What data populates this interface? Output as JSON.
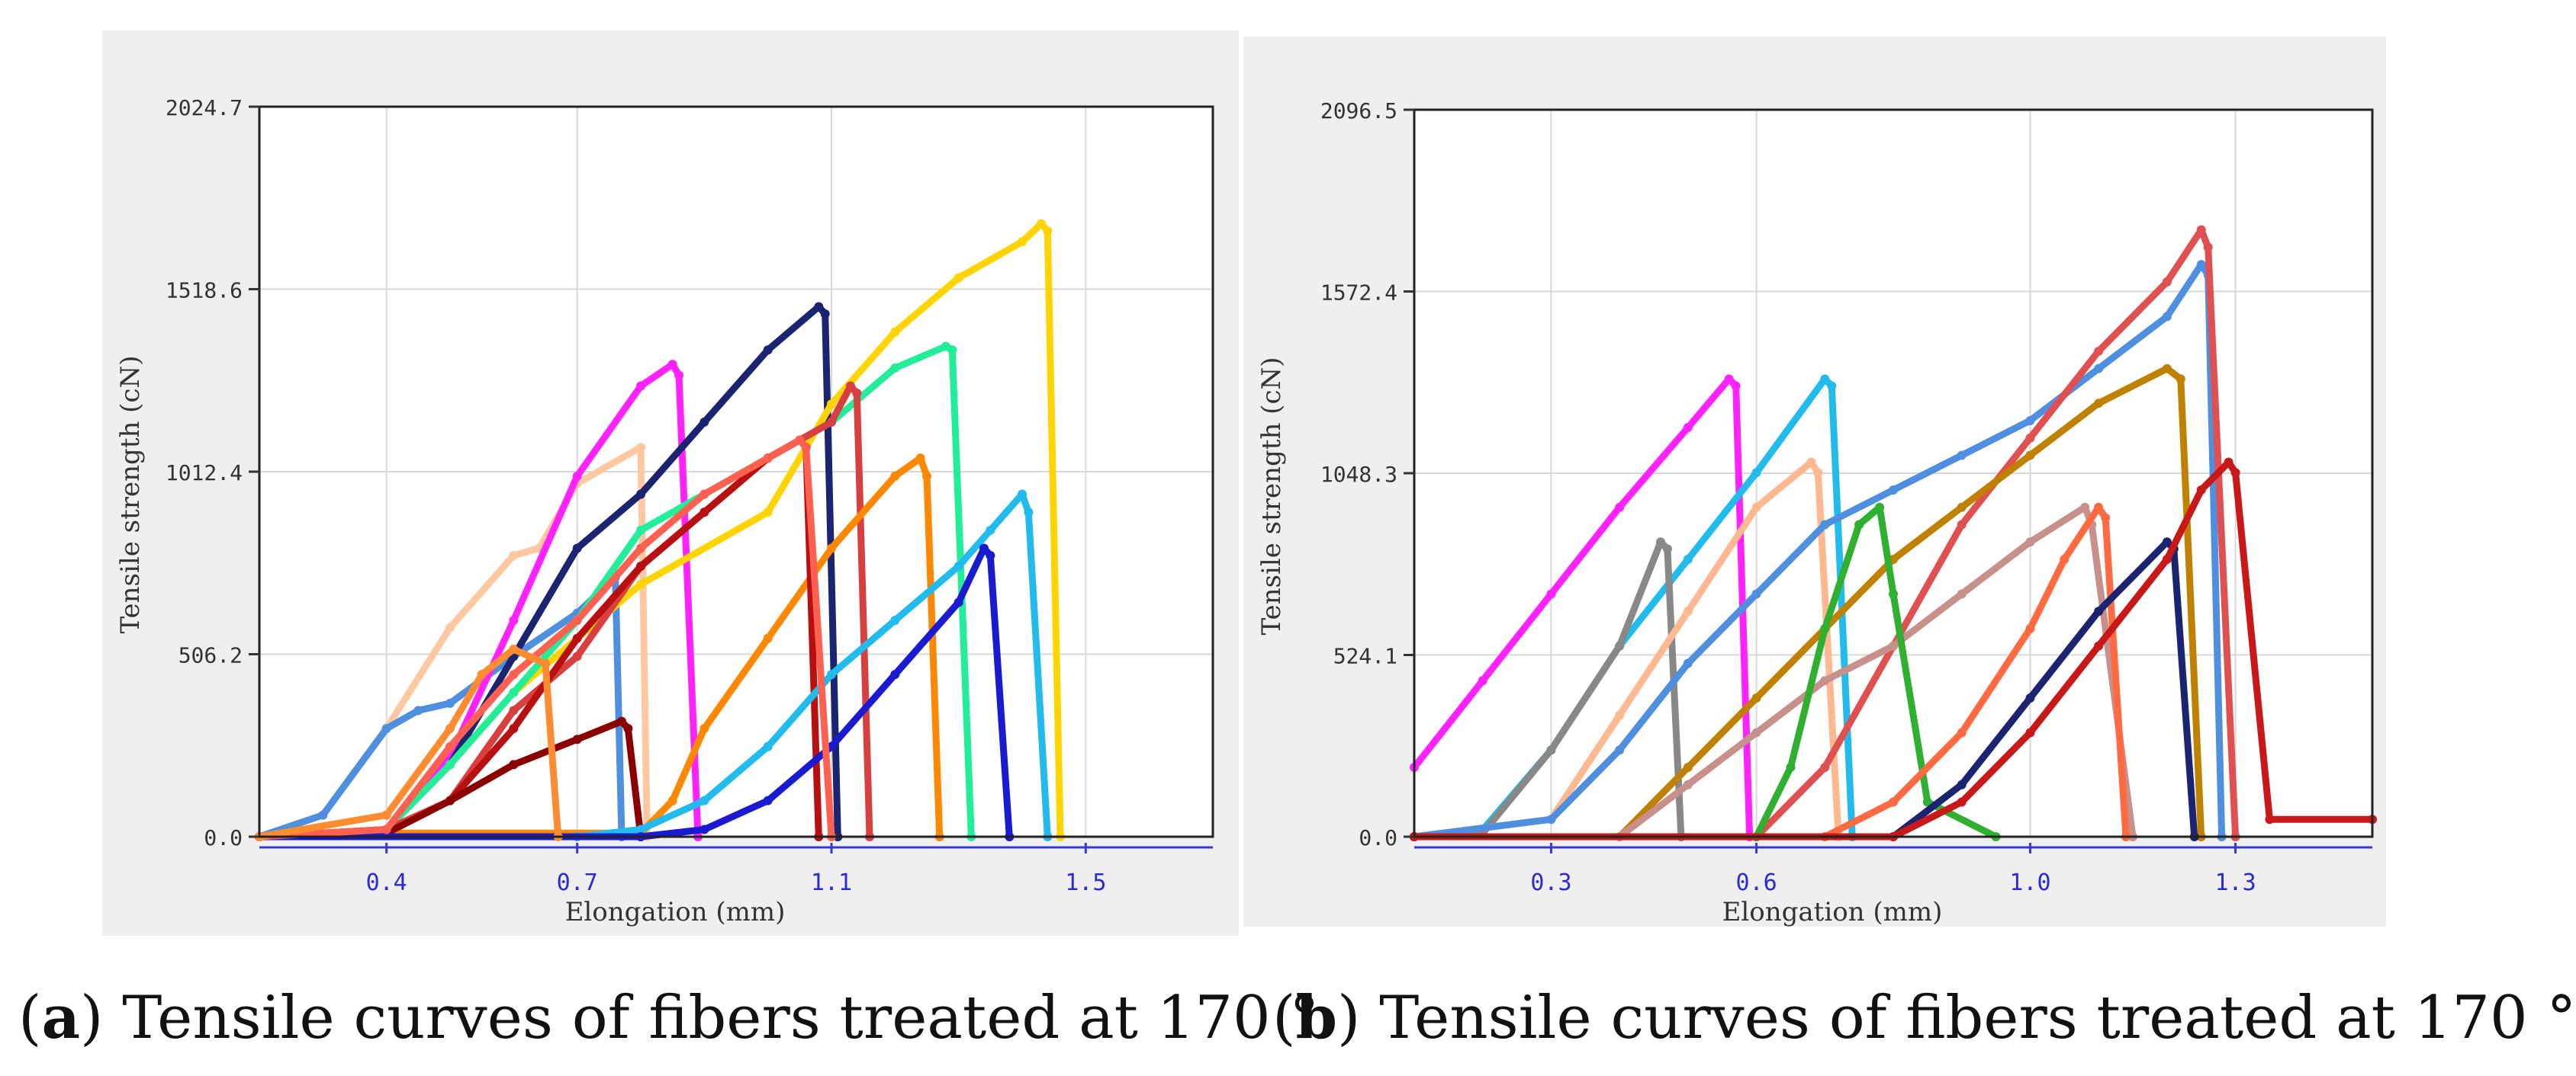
{
  "chart_data": [
    {
      "type": "line",
      "panel": "a",
      "xlabel": "Elongation (mm)",
      "ylabel": "Tensile strength (cN)",
      "xlim": [
        0.2,
        1.7
      ],
      "ylim": [
        0.0,
        2024.7
      ],
      "xticks": [
        0.4,
        0.7,
        1.1,
        1.5
      ],
      "xtick_labels": [
        "0.4",
        "0.7",
        "1.1",
        "1.5"
      ],
      "yticks": [
        0.0,
        506.2,
        1012.4,
        1518.6,
        2024.7
      ],
      "ytick_labels": [
        "0.0",
        "506.2",
        "1012.4",
        "1518.6",
        "2024.7"
      ],
      "grid": true,
      "series": [
        {
          "color": "#ffc8a0",
          "x": [
            0.2,
            0.3,
            0.4,
            0.5,
            0.6,
            0.64,
            0.7,
            0.8,
            0.81
          ],
          "y": [
            0,
            60,
            300,
            580,
            780,
            800,
            980,
            1080,
            0
          ]
        },
        {
          "color": "#4f8fe0",
          "x": [
            0.2,
            0.3,
            0.4,
            0.45,
            0.5,
            0.6,
            0.7,
            0.76,
            0.77
          ],
          "y": [
            0,
            60,
            300,
            350,
            370,
            500,
            620,
            720,
            0
          ]
        },
        {
          "color": "#ff22ff",
          "x": [
            0.2,
            0.4,
            0.5,
            0.6,
            0.7,
            0.8,
            0.85,
            0.86,
            0.89
          ],
          "y": [
            0,
            20,
            220,
            600,
            1000,
            1250,
            1310,
            1280,
            0
          ]
        },
        {
          "color": "#1a2470",
          "x": [
            0.2,
            0.4,
            0.5,
            0.6,
            0.7,
            0.8,
            0.9,
            1.0,
            1.08,
            1.09,
            1.11
          ],
          "y": [
            0,
            20,
            200,
            500,
            800,
            950,
            1150,
            1350,
            1470,
            1450,
            0
          ]
        },
        {
          "color": "#ffd400",
          "x": [
            0.2,
            0.4,
            0.5,
            0.6,
            0.8,
            1.0,
            1.1,
            1.2,
            1.3,
            1.4,
            1.43,
            1.44,
            1.46
          ],
          "y": [
            0,
            20,
            200,
            400,
            700,
            900,
            1200,
            1400,
            1550,
            1650,
            1700,
            1680,
            0
          ]
        },
        {
          "color": "#22ee99",
          "x": [
            0.2,
            0.4,
            0.5,
            0.6,
            0.7,
            0.8,
            0.9,
            1.0,
            1.1,
            1.2,
            1.28,
            1.29,
            1.32
          ],
          "y": [
            0,
            20,
            200,
            400,
            600,
            850,
            950,
            1050,
            1150,
            1300,
            1360,
            1350,
            0
          ]
        },
        {
          "color": "#d84040",
          "x": [
            0.2,
            0.4,
            0.5,
            0.6,
            0.7,
            0.8,
            0.9,
            1.0,
            1.1,
            1.13,
            1.14,
            1.16
          ],
          "y": [
            0,
            20,
            100,
            350,
            500,
            750,
            900,
            1050,
            1150,
            1250,
            1230,
            0
          ]
        },
        {
          "color": "#ff8800",
          "x": [
            0.2,
            0.4,
            0.8,
            0.85,
            0.9,
            1.0,
            1.1,
            1.2,
            1.24,
            1.25,
            1.27
          ],
          "y": [
            0,
            10,
            10,
            100,
            300,
            550,
            800,
            1000,
            1050,
            1000,
            0
          ]
        },
        {
          "color": "#b81010",
          "x": [
            0.2,
            0.4,
            0.5,
            0.6,
            0.7,
            0.8,
            0.9,
            1.0,
            1.05,
            1.06,
            1.08
          ],
          "y": [
            0,
            10,
            100,
            300,
            550,
            750,
            900,
            1050,
            1100,
            1080,
            0
          ]
        },
        {
          "color": "#8a0000",
          "x": [
            0.2,
            0.4,
            0.5,
            0.6,
            0.7,
            0.77,
            0.78,
            0.8
          ],
          "y": [
            0,
            10,
            100,
            200,
            270,
            320,
            300,
            0
          ]
        },
        {
          "color": "#22bbee",
          "x": [
            0.2,
            0.7,
            0.8,
            0.9,
            1.0,
            1.1,
            1.2,
            1.3,
            1.35,
            1.4,
            1.41,
            1.44
          ],
          "y": [
            0,
            0,
            20,
            100,
            250,
            450,
            600,
            750,
            850,
            950,
            900,
            0
          ]
        },
        {
          "color": "#1a1ad0",
          "x": [
            0.2,
            0.8,
            0.9,
            1.0,
            1.1,
            1.2,
            1.3,
            1.34,
            1.35,
            1.38
          ],
          "y": [
            0,
            0,
            20,
            100,
            250,
            450,
            650,
            800,
            780,
            0
          ]
        },
        {
          "color": "#ff6050",
          "x": [
            0.2,
            0.4,
            0.5,
            0.6,
            0.7,
            0.8,
            0.9,
            1.0,
            1.05,
            1.06,
            1.1
          ],
          "y": [
            0,
            20,
            250,
            450,
            600,
            800,
            950,
            1050,
            1100,
            1080,
            0
          ]
        },
        {
          "color": "#ff8c30",
          "x": [
            0.2,
            0.4,
            0.5,
            0.55,
            0.6,
            0.65,
            0.67
          ],
          "y": [
            0,
            60,
            300,
            450,
            520,
            480,
            0
          ]
        }
      ]
    },
    {
      "type": "line",
      "panel": "b",
      "xlabel": "Elongation (mm)",
      "ylabel": "Tensile strength (cN)",
      "xlim": [
        0.1,
        1.5
      ],
      "ylim": [
        0.0,
        2096.5
      ],
      "xticks": [
        0.3,
        0.6,
        1.0,
        1.3
      ],
      "xtick_labels": [
        "0.3",
        "0.6",
        "1.0",
        "1.3"
      ],
      "yticks": [
        0.0,
        524.1,
        1048.3,
        1572.4,
        2096.5
      ],
      "ytick_labels": [
        "0.0",
        "524.1",
        "1048.3",
        "1572.4",
        "2096.5"
      ],
      "grid": true,
      "series": [
        {
          "color": "#ff22ff",
          "x": [
            0.1,
            0.2,
            0.3,
            0.4,
            0.5,
            0.56,
            0.57,
            0.59
          ],
          "y": [
            200,
            450,
            700,
            950,
            1180,
            1320,
            1300,
            0
          ]
        },
        {
          "color": "#22bbee",
          "x": [
            0.1,
            0.2,
            0.3,
            0.4,
            0.5,
            0.6,
            0.7,
            0.71,
            0.74
          ],
          "y": [
            0,
            20,
            250,
            550,
            800,
            1050,
            1320,
            1300,
            0
          ]
        },
        {
          "color": "#888888",
          "x": [
            0.1,
            0.2,
            0.3,
            0.4,
            0.46,
            0.47,
            0.49
          ],
          "y": [
            0,
            10,
            250,
            550,
            850,
            830,
            0
          ]
        },
        {
          "color": "#ffb890",
          "x": [
            0.1,
            0.3,
            0.4,
            0.5,
            0.6,
            0.68,
            0.69,
            0.72
          ],
          "y": [
            0,
            50,
            350,
            650,
            950,
            1080,
            1050,
            0
          ]
        },
        {
          "color": "#4f8fe0",
          "x": [
            0.1,
            0.3,
            0.4,
            0.5,
            0.6,
            0.7,
            0.8,
            0.9,
            1.0,
            1.1,
            1.2,
            1.25,
            1.26,
            1.28
          ],
          "y": [
            0,
            50,
            250,
            500,
            700,
            900,
            1000,
            1100,
            1200,
            1350,
            1500,
            1650,
            1620,
            0
          ]
        },
        {
          "color": "#e05050",
          "x": [
            0.1,
            0.6,
            0.7,
            0.8,
            0.9,
            1.0,
            1.1,
            1.2,
            1.25,
            1.26,
            1.3
          ],
          "y": [
            0,
            0,
            200,
            550,
            900,
            1150,
            1400,
            1600,
            1750,
            1700,
            0
          ]
        },
        {
          "color": "#c08000",
          "x": [
            0.1,
            0.4,
            0.5,
            0.6,
            0.7,
            0.8,
            0.9,
            1.0,
            1.1,
            1.2,
            1.22,
            1.25
          ],
          "y": [
            0,
            0,
            200,
            400,
            600,
            800,
            950,
            1100,
            1250,
            1350,
            1320,
            0
          ]
        },
        {
          "color": "#c8908a",
          "x": [
            0.1,
            0.4,
            0.5,
            0.6,
            0.7,
            0.8,
            0.9,
            1.0,
            1.08,
            1.09,
            1.15
          ],
          "y": [
            0,
            0,
            150,
            300,
            450,
            550,
            700,
            850,
            950,
            900,
            0
          ]
        },
        {
          "color": "#30b030",
          "x": [
            0.1,
            0.6,
            0.65,
            0.7,
            0.75,
            0.78,
            0.8,
            0.85,
            0.95
          ],
          "y": [
            0,
            0,
            200,
            600,
            900,
            950,
            700,
            100,
            0
          ]
        },
        {
          "color": "#ff6a40",
          "x": [
            0.1,
            0.7,
            0.8,
            0.9,
            1.0,
            1.05,
            1.1,
            1.11,
            1.14
          ],
          "y": [
            0,
            0,
            100,
            300,
            600,
            800,
            950,
            920,
            0
          ]
        },
        {
          "color": "#1a2470",
          "x": [
            0.1,
            0.8,
            0.9,
            1.0,
            1.1,
            1.2,
            1.21,
            1.24
          ],
          "y": [
            0,
            0,
            150,
            400,
            650,
            850,
            830,
            0
          ]
        },
        {
          "color": "#c81818",
          "x": [
            0.1,
            0.8,
            0.9,
            1.0,
            1.1,
            1.2,
            1.25,
            1.29,
            1.3,
            1.35,
            1.5
          ],
          "y": [
            0,
            0,
            100,
            300,
            550,
            800,
            1000,
            1080,
            1050,
            50,
            50
          ]
        }
      ]
    }
  ],
  "captions": {
    "a_label": "a",
    "a_text": " Tensile curves of fibers treated at 170 °",
    "b_label": "b",
    "b_text": " Tensile curves of fibers treated at 170 °"
  }
}
